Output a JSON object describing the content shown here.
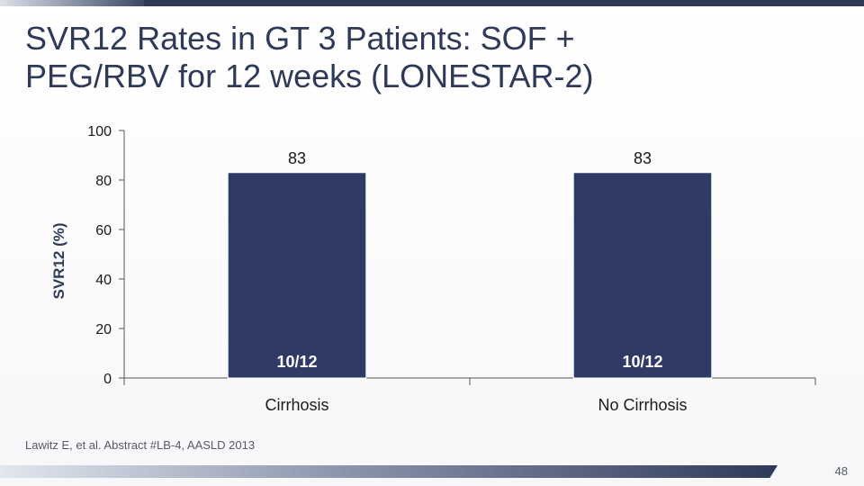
{
  "slide": {
    "title_line1": "SVR12 Rates in GT 3 Patients: SOF +",
    "title_line2": "PEG/RBV for 12 weeks (LONESTAR-2)",
    "footnote": "Lawitz E, et al. Abstract #LB-4, AASLD 2013",
    "page_number": "48"
  },
  "colors": {
    "bar": "#2f3a66",
    "title": "#2f3a59",
    "axis": "#555555"
  },
  "chart_data": {
    "type": "bar",
    "categories": [
      "Cirrhosis",
      "No Cirrhosis"
    ],
    "values": [
      83,
      83
    ],
    "data_labels": [
      "83",
      "83"
    ],
    "inner_labels": [
      "10/12",
      "10/12"
    ],
    "ylabel": "SVR12 (%)",
    "xlabel": "",
    "ylim": [
      0,
      100
    ],
    "yticks": [
      0,
      20,
      40,
      60,
      80,
      100
    ],
    "grid": false,
    "legend": "none"
  }
}
